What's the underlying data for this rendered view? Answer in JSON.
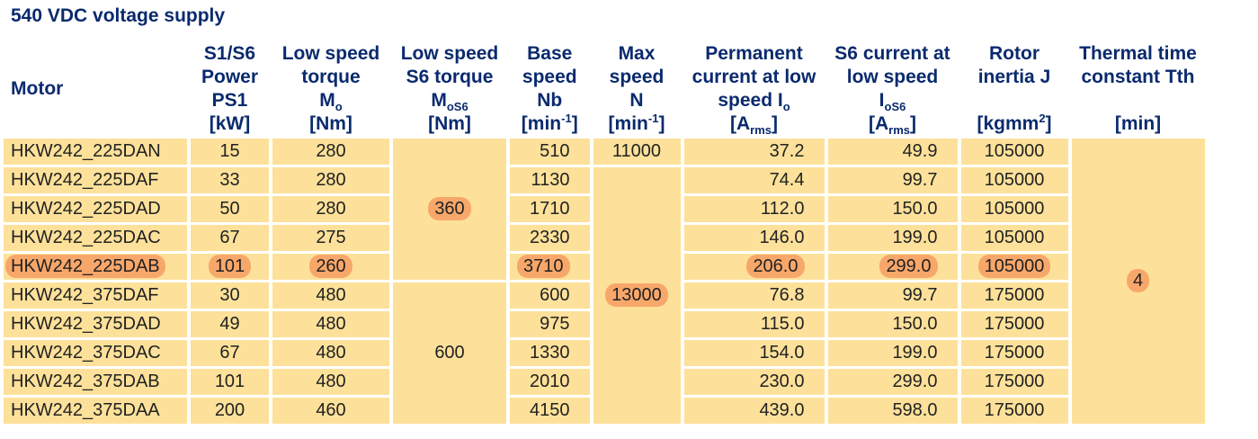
{
  "title": "540 VDC voltage supply",
  "headers": {
    "motor": "Motor",
    "power": [
      "S1/S6",
      "Power",
      "PS1",
      "[kW]"
    ],
    "low_torque": [
      "Low speed",
      "torque",
      "M",
      "o",
      "[Nm]"
    ],
    "low_torque_s6": [
      "Low speed",
      "S6 torque",
      "M",
      "oS6",
      "[Nm]"
    ],
    "base_speed": [
      "Base",
      "speed",
      "Nb",
      "[min",
      "-1",
      "]"
    ],
    "max_speed": [
      "Max",
      "speed",
      "N",
      "[min",
      "-1",
      "]"
    ],
    "perm_current": [
      "Permanent",
      "current at low",
      "speed I",
      "o",
      "[A",
      "rms",
      "]"
    ],
    "s6_current": [
      "S6 current at",
      "low speed",
      "I",
      "oS6",
      "[A",
      "rms",
      "]"
    ],
    "inertia": [
      "Rotor",
      "inertia J",
      "[kgmm",
      "2",
      "]"
    ],
    "thermal": [
      "Thermal time",
      "constant Tth",
      "[min]"
    ]
  },
  "rows": [
    {
      "motor": "HKW242_225DAN",
      "power": "15",
      "torque": "280",
      "base": "510",
      "perm": "37.2",
      "s6": "49.9",
      "inertia": "105000"
    },
    {
      "motor": "HKW242_225DAF",
      "power": "33",
      "torque": "280",
      "base": "1130",
      "perm": "74.4",
      "s6": "99.7",
      "inertia": "105000"
    },
    {
      "motor": "HKW242_225DAD",
      "power": "50",
      "torque": "280",
      "base": "1710",
      "perm": "112.0",
      "s6": "150.0",
      "inertia": "105000"
    },
    {
      "motor": "HKW242_225DAC",
      "power": "67",
      "torque": "275",
      "base": "2330",
      "perm": "146.0",
      "s6": "199.0",
      "inertia": "105000"
    },
    {
      "motor": "HKW242_225DAB",
      "power": "101",
      "torque": "260",
      "base": "3710",
      "perm": "206.0",
      "s6": "299.0",
      "inertia": "105000"
    },
    {
      "motor": "HKW242_375DAF",
      "power": "30",
      "torque": "480",
      "base": "600",
      "perm": "76.8",
      "s6": "99.7",
      "inertia": "175000"
    },
    {
      "motor": "HKW242_375DAD",
      "power": "49",
      "torque": "480",
      "base": "975",
      "perm": "115.0",
      "s6": "150.0",
      "inertia": "175000"
    },
    {
      "motor": "HKW242_375DAC",
      "power": "67",
      "torque": "480",
      "base": "1330",
      "perm": "154.0",
      "s6": "199.0",
      "inertia": "175000"
    },
    {
      "motor": "HKW242_375DAB",
      "power": "101",
      "torque": "480",
      "base": "2010",
      "perm": "230.0",
      "s6": "299.0",
      "inertia": "175000"
    },
    {
      "motor": "HKW242_375DAA",
      "power": "200",
      "torque": "460",
      "base": "4150",
      "perm": "439.0",
      "s6": "598.0",
      "inertia": "175000"
    }
  ],
  "merged": {
    "s6_torque_group1": "360",
    "s6_torque_group2": "600",
    "max_speed_first": "11000",
    "max_speed_rest": "13000",
    "thermal": "4"
  },
  "colors": {
    "cell_bg": "#fde19a",
    "highlight": "#f8a76a",
    "header_text": "#0a2a6e"
  }
}
